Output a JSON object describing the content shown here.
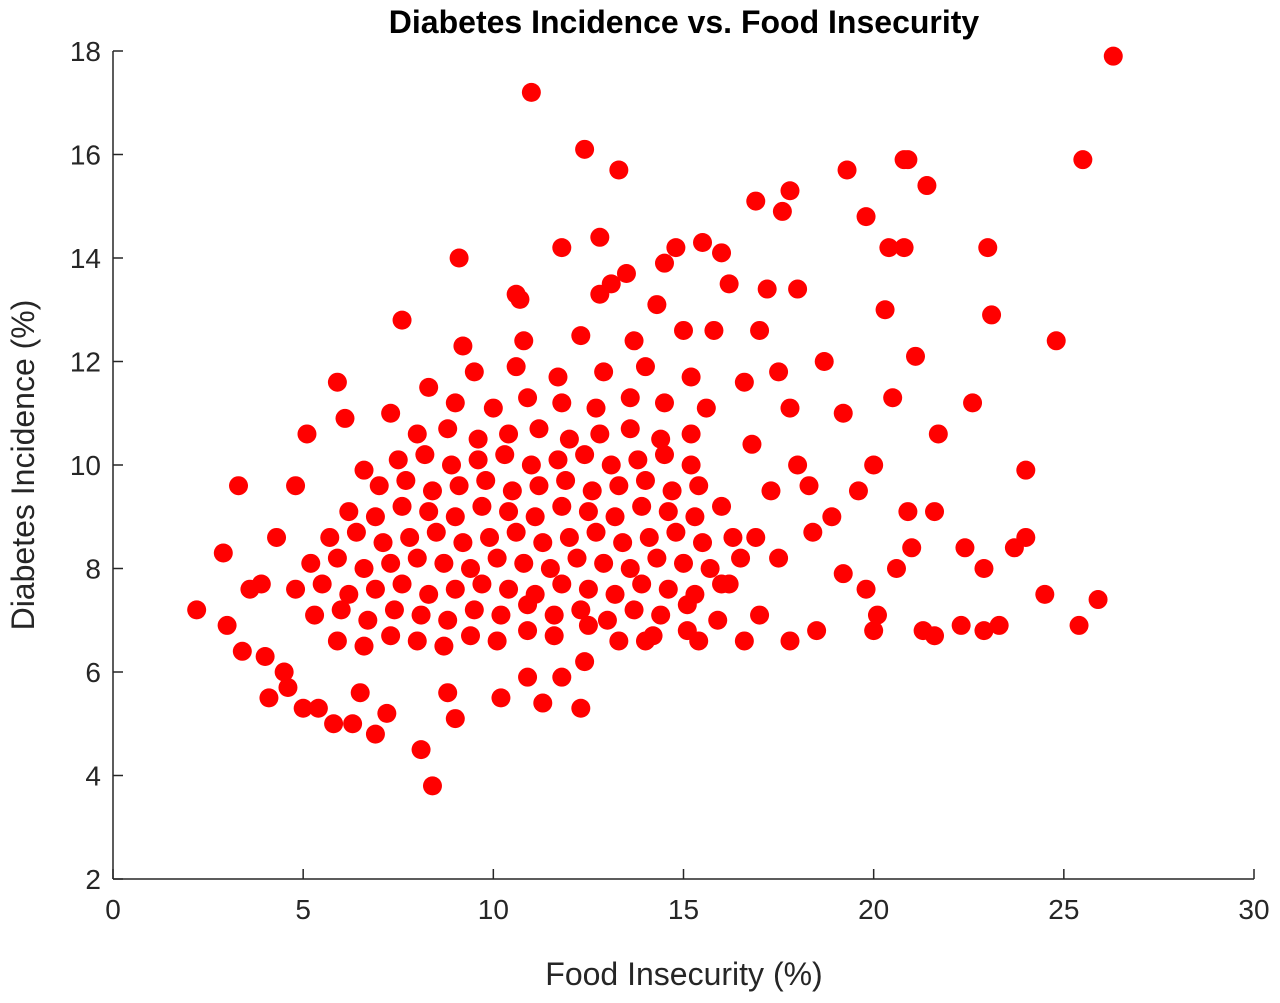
{
  "chart_data": {
    "type": "scatter",
    "title": "Diabetes Incidence vs. Food Insecurity",
    "x_label": "Food Insecurity (%)",
    "y_label": "Diabetes Incidence (%)",
    "color": "#ff0000",
    "xlim": [
      0,
      30
    ],
    "xticks": [
      0,
      5,
      10,
      15,
      20,
      25,
      30
    ],
    "ylim": [
      2,
      18
    ],
    "yticks": [
      2,
      4,
      6,
      8,
      10,
      12,
      14,
      16,
      18
    ],
    "x": [
      5.9,
      6.6,
      7.3,
      8.0,
      8.7,
      9.4,
      10.1,
      10.9,
      11.6,
      12.5,
      13.3,
      14.2,
      15.1,
      5.3,
      6.0,
      6.7,
      7.4,
      8.1,
      8.8,
      9.5,
      10.2,
      10.9,
      11.6,
      12.3,
      13.0,
      13.7,
      14.4,
      15.1,
      15.9,
      4.8,
      5.5,
      6.2,
      6.9,
      7.6,
      8.3,
      9.0,
      9.7,
      10.4,
      11.1,
      11.8,
      12.5,
      13.2,
      13.9,
      14.6,
      15.3,
      16.0,
      5.2,
      5.9,
      6.6,
      7.3,
      8.0,
      8.7,
      9.4,
      10.1,
      10.8,
      11.5,
      12.2,
      12.9,
      13.6,
      14.3,
      15.0,
      15.7,
      16.5,
      5.7,
      6.4,
      7.1,
      7.8,
      8.5,
      9.2,
      9.9,
      10.6,
      11.3,
      12.0,
      12.7,
      13.4,
      14.1,
      14.8,
      15.5,
      16.3,
      6.2,
      6.9,
      7.6,
      8.3,
      9.0,
      9.7,
      10.4,
      11.1,
      11.8,
      12.5,
      13.2,
      13.9,
      14.6,
      15.3,
      16.0,
      7.0,
      7.7,
      8.4,
      9.1,
      9.8,
      10.5,
      11.2,
      11.9,
      12.6,
      13.3,
      14.0,
      14.7,
      15.4,
      7.5,
      8.2,
      8.9,
      9.6,
      10.3,
      11.0,
      11.7,
      12.4,
      13.1,
      13.8,
      14.5,
      15.2,
      8.0,
      8.8,
      9.6,
      10.4,
      11.2,
      12.0,
      12.8,
      13.6,
      14.4,
      15.2,
      9.0,
      10.0,
      10.9,
      11.8,
      12.7,
      13.6,
      14.5,
      15.6,
      9.5,
      10.6,
      11.7,
      12.9,
      14.0,
      15.2,
      9.2,
      10.8,
      12.3,
      13.7,
      15.0,
      10.6,
      12.8,
      14.3,
      13.5,
      14.8,
      2.2,
      2.9,
      3.0,
      3.3,
      3.4,
      4.1,
      4.6,
      5.0,
      5.1,
      5.8,
      6.3,
      5.9,
      6.1,
      6.9,
      7.6,
      8.1,
      8.4,
      9.0,
      9.1,
      11.0,
      11.3,
      12.3,
      12.4,
      13.3,
      12.8,
      15.5,
      16.9,
      17.6,
      17.8,
      19.3,
      19.8,
      20.8,
      20.9,
      21.4,
      20.4,
      20.8,
      23.0,
      26.3,
      25.5,
      24.8,
      23.1,
      21.1,
      20.3,
      20.5,
      22.6,
      21.7,
      24.0,
      20.0,
      21.6,
      22.4,
      22.9,
      24.0,
      23.7,
      24.5,
      25.9,
      25.4,
      23.3,
      22.9,
      22.3,
      21.3,
      21.6,
      20.0,
      20.1,
      20.6,
      21.0,
      20.9,
      19.6,
      18.9,
      18.5,
      17.8,
      17.0,
      16.6,
      18.0,
      17.2,
      17.0,
      18.7,
      19.2,
      17.5,
      16.8,
      18.0,
      17.3,
      16.6,
      16.2,
      15.8,
      18.4,
      19.2,
      19.8,
      3.9,
      4.0,
      4.5,
      4.8,
      5.4,
      6.5,
      7.2,
      8.8,
      10.2,
      10.9,
      11.8,
      12.4,
      14.0,
      15.4,
      16.2,
      16.9,
      17.5,
      18.3,
      17.8,
      10.7,
      11.8,
      13.1,
      14.5,
      16.0,
      8.3,
      7.3,
      6.6,
      4.3,
      3.6
    ],
    "values": [
      6.6,
      6.5,
      6.7,
      6.6,
      6.5,
      6.7,
      6.6,
      6.8,
      6.7,
      6.9,
      6.6,
      6.7,
      6.8,
      7.1,
      7.2,
      7.0,
      7.2,
      7.1,
      7.0,
      7.2,
      7.1,
      7.3,
      7.1,
      7.2,
      7.0,
      7.2,
      7.1,
      7.3,
      7.0,
      7.6,
      7.7,
      7.5,
      7.6,
      7.7,
      7.5,
      7.6,
      7.7,
      7.6,
      7.5,
      7.7,
      7.6,
      7.5,
      7.7,
      7.6,
      7.5,
      7.7,
      8.1,
      8.2,
      8.0,
      8.1,
      8.2,
      8.1,
      8.0,
      8.2,
      8.1,
      8.0,
      8.2,
      8.1,
      8.0,
      8.2,
      8.1,
      8.0,
      8.2,
      8.6,
      8.7,
      8.5,
      8.6,
      8.7,
      8.5,
      8.6,
      8.7,
      8.5,
      8.6,
      8.7,
      8.5,
      8.6,
      8.7,
      8.5,
      8.6,
      9.1,
      9.0,
      9.2,
      9.1,
      9.0,
      9.2,
      9.1,
      9.0,
      9.2,
      9.1,
      9.0,
      9.2,
      9.1,
      9.0,
      9.2,
      9.6,
      9.7,
      9.5,
      9.6,
      9.7,
      9.5,
      9.6,
      9.7,
      9.5,
      9.6,
      9.7,
      9.5,
      9.6,
      10.1,
      10.2,
      10.0,
      10.1,
      10.2,
      10.0,
      10.1,
      10.2,
      10.0,
      10.1,
      10.2,
      10.0,
      10.6,
      10.7,
      10.5,
      10.6,
      10.7,
      10.5,
      10.6,
      10.7,
      10.5,
      10.6,
      11.2,
      11.1,
      11.3,
      11.2,
      11.1,
      11.3,
      11.2,
      11.1,
      11.8,
      11.9,
      11.7,
      11.8,
      11.9,
      11.7,
      12.3,
      12.4,
      12.5,
      12.4,
      12.6,
      13.3,
      13.3,
      13.1,
      13.7,
      14.2,
      7.2,
      8.3,
      6.9,
      9.6,
      6.4,
      5.5,
      5.7,
      5.3,
      10.6,
      5.0,
      5.0,
      11.6,
      10.9,
      4.8,
      12.8,
      4.5,
      3.8,
      5.1,
      14.0,
      17.2,
      5.4,
      5.3,
      16.1,
      15.7,
      14.4,
      14.3,
      15.1,
      14.9,
      15.3,
      15.7,
      14.8,
      15.9,
      15.9,
      15.4,
      14.2,
      14.2,
      14.2,
      17.9,
      15.9,
      12.4,
      12.9,
      12.1,
      13.0,
      11.3,
      11.2,
      10.6,
      9.9,
      10.0,
      9.1,
      8.4,
      8.0,
      8.6,
      8.4,
      7.5,
      7.4,
      6.9,
      6.9,
      6.8,
      6.9,
      6.8,
      6.7,
      6.8,
      7.1,
      8.0,
      8.4,
      9.1,
      9.5,
      9.0,
      6.8,
      6.6,
      7.1,
      6.6,
      13.4,
      13.4,
      12.6,
      12.0,
      11.0,
      11.8,
      10.4,
      10.0,
      9.5,
      11.6,
      13.5,
      12.6,
      8.7,
      7.9,
      7.6,
      7.7,
      6.3,
      6.0,
      9.6,
      5.3,
      5.6,
      5.2,
      5.6,
      5.5,
      5.9,
      5.9,
      6.2,
      6.6,
      6.6,
      7.7,
      8.6,
      8.2,
      9.6,
      11.1,
      13.2,
      14.2,
      13.5,
      13.9,
      14.1,
      11.5,
      11.0,
      9.9,
      8.6,
      7.6
    ]
  }
}
